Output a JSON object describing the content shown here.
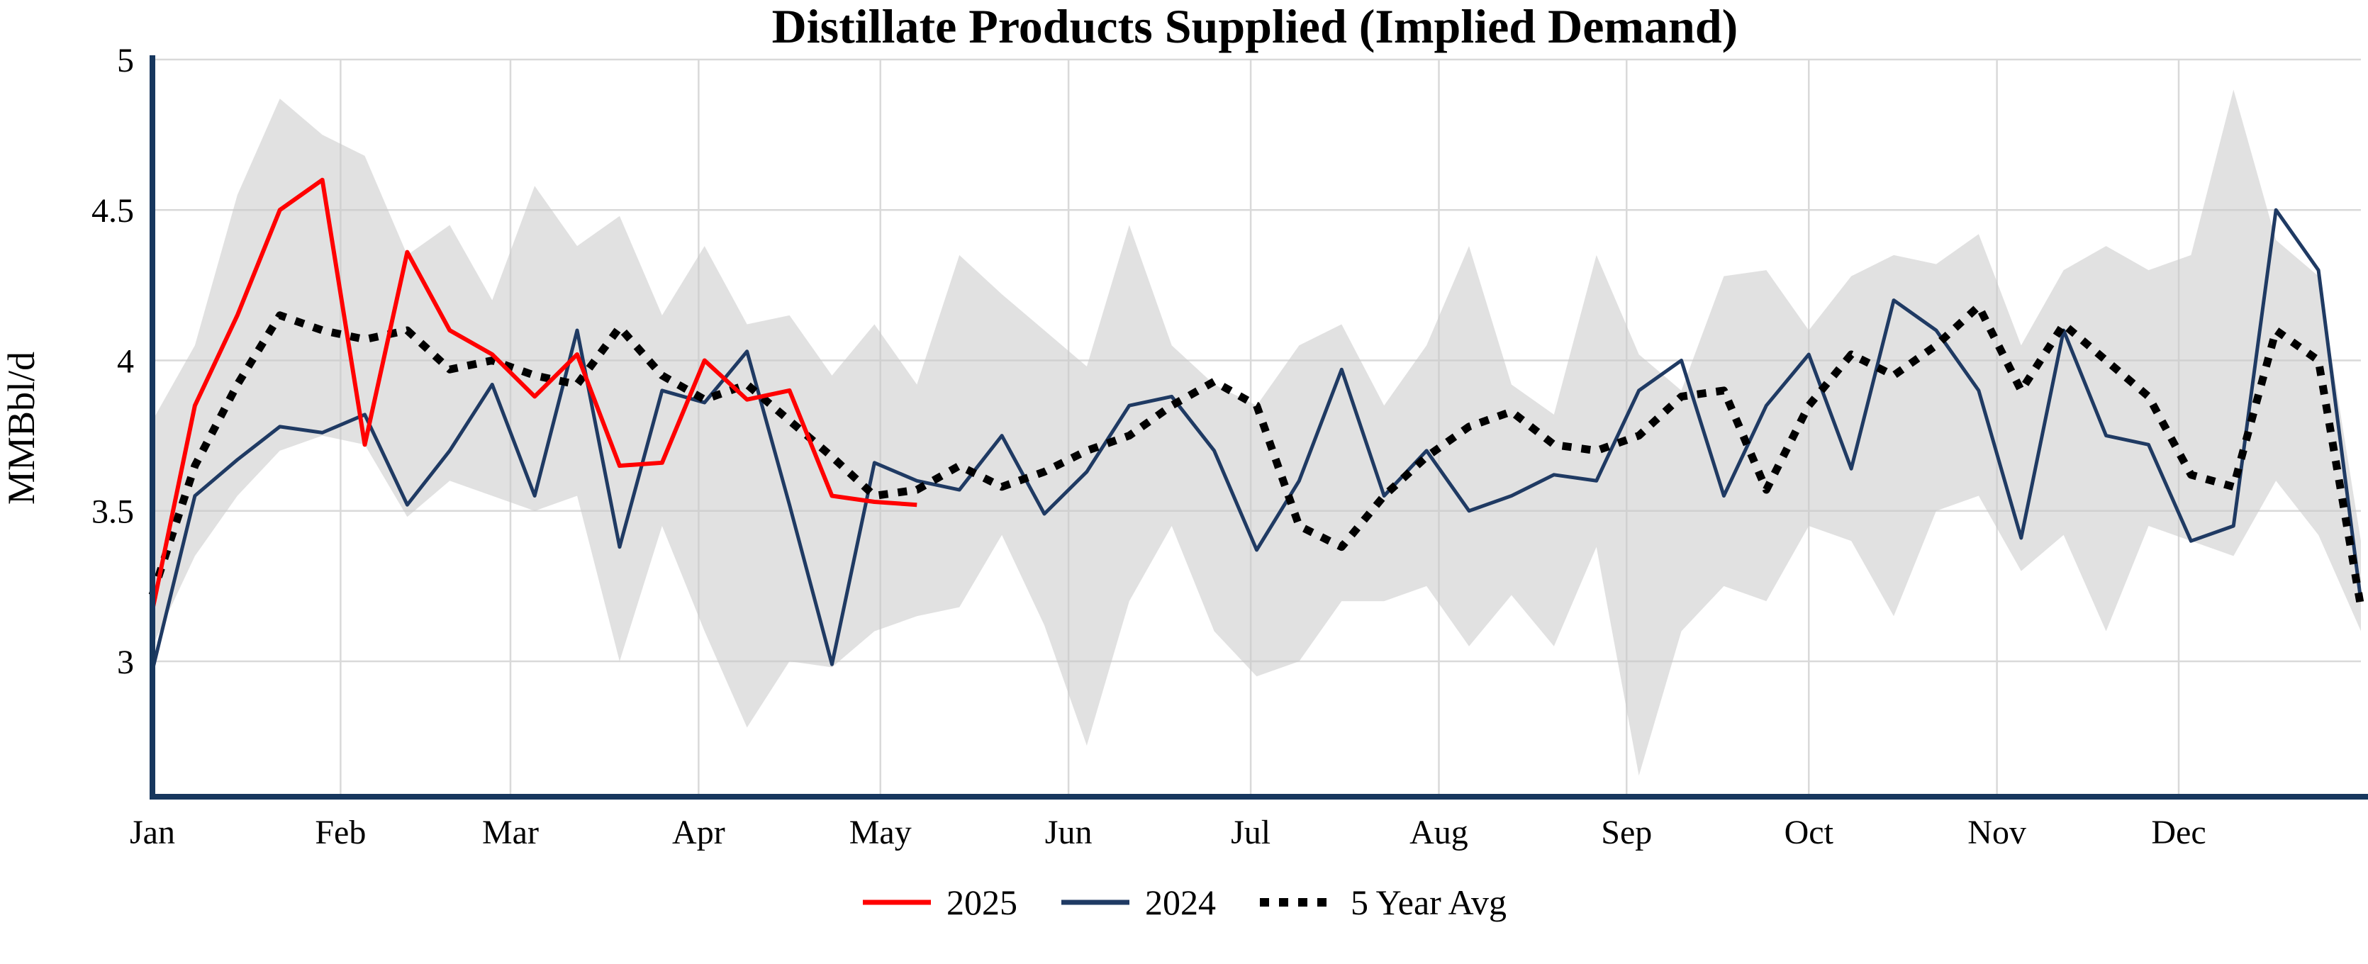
{
  "chart_data": {
    "type": "line",
    "title": "Distillate Products Supplied (Implied Demand)",
    "ylabel": "MMBbl/d",
    "x_unit": "weekly observations, Jan through Dec",
    "weeks": 53,
    "ylim": [
      2.55,
      5.0
    ],
    "yticks": [
      3,
      3.5,
      4,
      4.5,
      5
    ],
    "ytick_labels": [
      "3",
      "3.5",
      "4",
      "4.5",
      "5"
    ],
    "grid": true,
    "legend_position": "bottom-center",
    "axis_color": "#17375e",
    "grid_color": "#d9d9d9",
    "months": [
      {
        "label": "Jan",
        "start_week": 1
      },
      {
        "label": "Feb",
        "start_week": 5.43
      },
      {
        "label": "Mar",
        "start_week": 9.43
      },
      {
        "label": "Apr",
        "start_week": 13.86
      },
      {
        "label": "May",
        "start_week": 18.14
      },
      {
        "label": "Jun",
        "start_week": 22.57
      },
      {
        "label": "Jul",
        "start_week": 26.86
      },
      {
        "label": "Aug",
        "start_week": 31.29
      },
      {
        "label": "Sep",
        "start_week": 35.71
      },
      {
        "label": "Oct",
        "start_week": 40.0
      },
      {
        "label": "Nov",
        "start_week": 44.43
      },
      {
        "label": "Dec",
        "start_week": 48.71
      }
    ],
    "band": {
      "color": "#c8c8c8",
      "opacity": 0.55,
      "upper": [
        3.8,
        4.05,
        4.55,
        4.87,
        4.75,
        4.68,
        4.35,
        4.45,
        4.2,
        4.58,
        4.38,
        4.48,
        4.15,
        4.38,
        4.12,
        4.15,
        3.95,
        4.12,
        3.92,
        4.35,
        4.22,
        4.1,
        3.98,
        4.45,
        4.05,
        3.92,
        3.85,
        4.05,
        4.12,
        3.85,
        4.05,
        4.38,
        3.92,
        3.82,
        4.35,
        4.02,
        3.9,
        4.28,
        4.3,
        4.1,
        4.28,
        4.35,
        4.32,
        4.42,
        4.05,
        4.3,
        4.38,
        4.3,
        4.35,
        4.9,
        4.4,
        4.28,
        3.4
      ],
      "lower": [
        3.05,
        3.35,
        3.55,
        3.7,
        3.75,
        3.72,
        3.48,
        3.6,
        3.55,
        3.5,
        3.55,
        3.0,
        3.45,
        3.1,
        2.78,
        3.0,
        2.98,
        3.1,
        3.15,
        3.18,
        3.42,
        3.12,
        2.72,
        3.2,
        3.45,
        3.1,
        2.95,
        3.0,
        3.2,
        3.2,
        3.25,
        3.05,
        3.22,
        3.05,
        3.38,
        2.62,
        3.1,
        3.25,
        3.2,
        3.45,
        3.4,
        3.15,
        3.5,
        3.55,
        3.3,
        3.42,
        3.1,
        3.45,
        3.4,
        3.35,
        3.6,
        3.42,
        3.1
      ]
    },
    "series": [
      {
        "name": "2025",
        "color": "#ff0000",
        "style": "solid",
        "start_week": 1,
        "values": [
          3.17,
          3.85,
          4.15,
          4.5,
          4.6,
          3.72,
          4.36,
          4.1,
          4.02,
          3.88,
          4.02,
          3.65,
          3.66,
          4.0,
          3.87,
          3.9,
          3.55,
          3.53,
          3.52
        ]
      },
      {
        "name": "2024",
        "color": "#1f3a63",
        "style": "solid",
        "start_week": 1,
        "values": [
          2.97,
          3.55,
          3.67,
          3.78,
          3.76,
          3.82,
          3.52,
          3.7,
          3.92,
          3.55,
          4.1,
          3.38,
          3.9,
          3.86,
          4.03,
          3.52,
          2.99,
          3.66,
          3.6,
          3.57,
          3.75,
          3.49,
          3.63,
          3.85,
          3.88,
          3.7,
          3.37,
          3.6,
          3.97,
          3.55,
          3.7,
          3.5,
          3.55,
          3.62,
          3.6,
          3.9,
          4.0,
          3.55,
          3.85,
          4.02,
          3.64,
          4.2,
          4.1,
          3.9,
          3.41,
          4.1,
          3.75,
          3.72,
          3.4,
          3.45,
          4.5,
          4.3,
          3.2
        ]
      },
      {
        "name": "5 Year Avg",
        "color": "#000000",
        "style": "dotted",
        "start_week": 1,
        "values": [
          3.22,
          3.65,
          3.92,
          4.15,
          4.1,
          4.07,
          4.1,
          3.97,
          4.0,
          3.95,
          3.92,
          4.11,
          3.95,
          3.87,
          3.92,
          3.8,
          3.68,
          3.55,
          3.57,
          3.65,
          3.58,
          3.63,
          3.7,
          3.75,
          3.85,
          3.93,
          3.85,
          3.45,
          3.38,
          3.55,
          3.68,
          3.78,
          3.83,
          3.72,
          3.7,
          3.75,
          3.88,
          3.9,
          3.57,
          3.85,
          4.02,
          3.95,
          4.05,
          4.18,
          3.9,
          4.12,
          4.0,
          3.88,
          3.62,
          3.58,
          4.1,
          4.0,
          3.18
        ]
      }
    ]
  }
}
